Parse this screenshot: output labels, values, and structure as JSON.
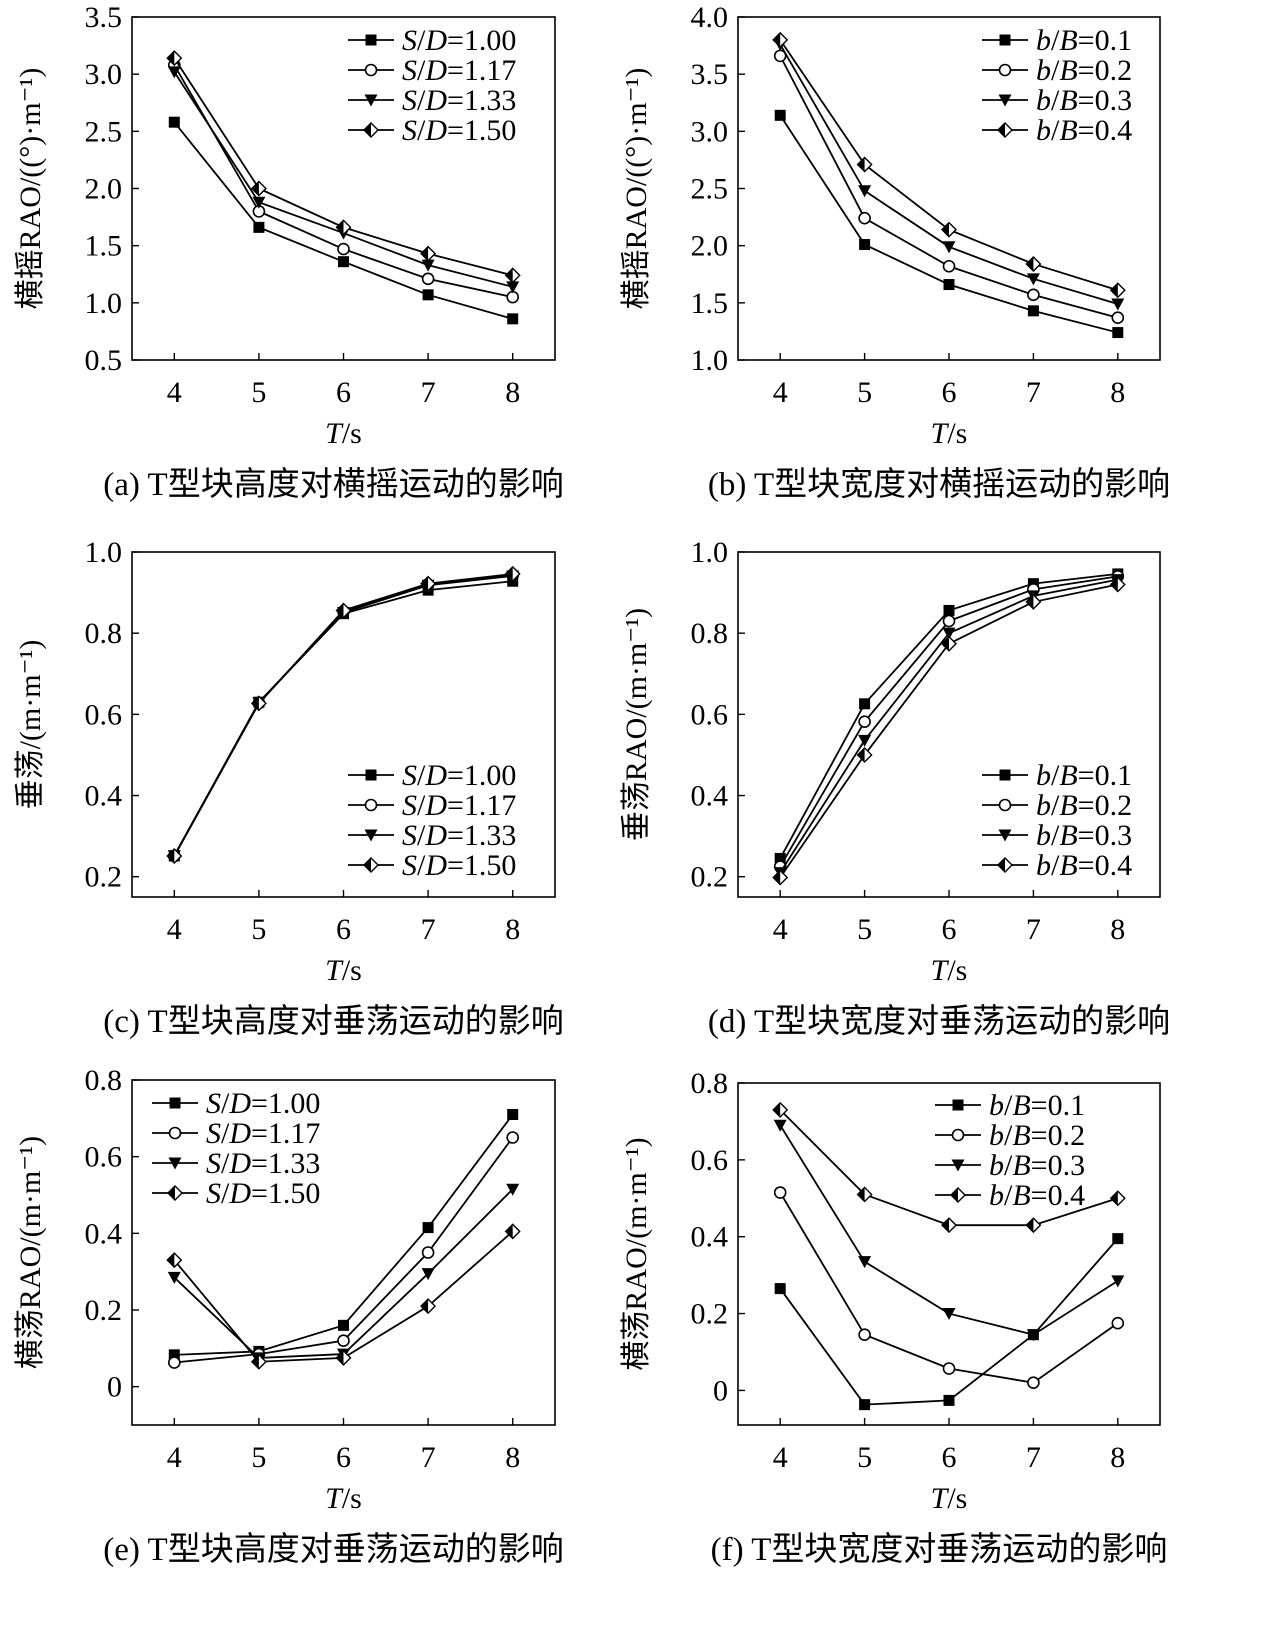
{
  "chart_data": [
    {
      "id": "a",
      "type": "line",
      "caption": "(a) T型块高度对横摇运动的影响",
      "title": "",
      "xlabel": "T/s",
      "ylabel": "横摇RAO/((°)·m⁻¹)",
      "x": [
        4,
        5,
        6,
        7,
        8
      ],
      "xlim": [
        3.5,
        8.5
      ],
      "ylim": [
        0.5,
        3.5
      ],
      "yticks": [
        "0.5",
        "1.0",
        "1.5",
        "2.0",
        "2.5",
        "3.0",
        "3.5"
      ],
      "legend_position": "top-right",
      "series": [
        {
          "name": "S/D=1.00",
          "var": "S",
          "sub": "D",
          "val": "=1.00",
          "marker": "square",
          "values": [
            2.58,
            1.66,
            1.36,
            1.07,
            0.86
          ]
        },
        {
          "name": "S/D=1.17",
          "var": "S",
          "sub": "D",
          "val": "=1.17",
          "marker": "circle",
          "values": [
            3.08,
            1.8,
            1.47,
            1.21,
            1.05
          ]
        },
        {
          "name": "S/D=1.33",
          "var": "S",
          "sub": "D",
          "val": "=1.33",
          "marker": "triangle",
          "values": [
            3.02,
            1.88,
            1.61,
            1.33,
            1.14
          ]
        },
        {
          "name": "S/D=1.50",
          "var": "S",
          "sub": "D",
          "val": "=1.50",
          "marker": "diamond",
          "values": [
            3.14,
            2.0,
            1.66,
            1.43,
            1.24
          ]
        }
      ]
    },
    {
      "id": "b",
      "type": "line",
      "caption": "(b) T型块宽度对横摇运动的影响",
      "title": "",
      "xlabel": "T/s",
      "ylabel": "横摇RAO/((°)·m⁻¹)",
      "x": [
        4,
        5,
        6,
        7,
        8
      ],
      "xlim": [
        3.5,
        8.5
      ],
      "ylim": [
        1.0,
        4.0
      ],
      "yticks": [
        "1.0",
        "1.5",
        "2.0",
        "2.5",
        "3.0",
        "3.5",
        "4.0"
      ],
      "legend_position": "top-right",
      "series": [
        {
          "name": "b/B=0.1",
          "var": "b",
          "sub": "B",
          "val": "=0.1",
          "marker": "square",
          "values": [
            3.14,
            2.01,
            1.66,
            1.43,
            1.24
          ]
        },
        {
          "name": "b/B=0.2",
          "var": "b",
          "sub": "B",
          "val": "=0.2",
          "marker": "circle",
          "values": [
            3.66,
            2.24,
            1.82,
            1.57,
            1.37
          ]
        },
        {
          "name": "b/B=0.3",
          "var": "b",
          "sub": "B",
          "val": "=0.3",
          "marker": "triangle",
          "values": [
            3.76,
            2.48,
            1.99,
            1.71,
            1.49
          ]
        },
        {
          "name": "b/B=0.4",
          "var": "b",
          "sub": "B",
          "val": "=0.4",
          "marker": "diamond",
          "values": [
            3.8,
            2.71,
            2.14,
            1.84,
            1.61
          ]
        }
      ]
    },
    {
      "id": "c",
      "type": "line",
      "caption": "(c) T型块高度对垂荡运动的影响",
      "title": "",
      "xlabel": "T/s",
      "ylabel": "垂荡/(m·m⁻¹)",
      "x": [
        4,
        5,
        6,
        7,
        8
      ],
      "xlim": [
        3.5,
        8.5
      ],
      "ylim": [
        0.15,
        1.0
      ],
      "yticks": [
        "0.2",
        "0.4",
        "0.6",
        "0.8",
        "1.0"
      ],
      "legend_position": "bottom-right",
      "series": [
        {
          "name": "S/D=1.00",
          "var": "S",
          "sub": "D",
          "val": "=1.00",
          "marker": "square",
          "values": [
            0.251,
            0.63,
            0.848,
            0.906,
            0.928
          ]
        },
        {
          "name": "S/D=1.17",
          "var": "S",
          "sub": "D",
          "val": "=1.17",
          "marker": "circle",
          "values": [
            0.251,
            0.628,
            0.853,
            0.92,
            0.943
          ]
        },
        {
          "name": "S/D=1.33",
          "var": "S",
          "sub": "D",
          "val": "=1.33",
          "marker": "triangle",
          "values": [
            0.252,
            0.629,
            0.851,
            0.918,
            0.941
          ]
        },
        {
          "name": "S/D=1.50",
          "var": "S",
          "sub": "D",
          "val": "=1.50",
          "marker": "diamond",
          "values": [
            0.251,
            0.627,
            0.856,
            0.922,
            0.946
          ]
        }
      ]
    },
    {
      "id": "d",
      "type": "line",
      "caption": "(d) T型块宽度对垂荡运动的影响",
      "title": "",
      "xlabel": "T/s",
      "ylabel": "垂荡RAO/(m·m⁻¹)",
      "x": [
        4,
        5,
        6,
        7,
        8
      ],
      "xlim": [
        3.5,
        8.5
      ],
      "ylim": [
        0.15,
        1.0
      ],
      "yticks": [
        "0.2",
        "0.4",
        "0.6",
        "0.8",
        "1.0"
      ],
      "legend_position": "bottom-right",
      "series": [
        {
          "name": "b/B=0.1",
          "var": "b",
          "sub": "B",
          "val": "=0.1",
          "marker": "square",
          "values": [
            0.245,
            0.626,
            0.856,
            0.922,
            0.946
          ]
        },
        {
          "name": "b/B=0.2",
          "var": "b",
          "sub": "B",
          "val": "=0.2",
          "marker": "circle",
          "values": [
            0.225,
            0.582,
            0.83,
            0.908,
            0.94
          ]
        },
        {
          "name": "b/B=0.3",
          "var": "b",
          "sub": "B",
          "val": "=0.3",
          "marker": "triangle",
          "values": [
            0.21,
            0.536,
            0.8,
            0.892,
            0.932
          ]
        },
        {
          "name": "b/B=0.4",
          "var": "b",
          "sub": "B",
          "val": "=0.4",
          "marker": "diamond",
          "values": [
            0.198,
            0.5,
            0.774,
            0.877,
            0.92
          ]
        }
      ]
    },
    {
      "id": "e",
      "type": "line",
      "caption": "(e) T型块高度对垂荡运动的影响",
      "title": "",
      "xlabel": "T/s",
      "ylabel": "横荡RAO/(m·m⁻¹)",
      "x": [
        4,
        5,
        6,
        7,
        8
      ],
      "xlim": [
        3.5,
        8.5
      ],
      "ylim": [
        -0.1,
        0.8
      ],
      "yticks": [
        "0",
        "0.2",
        "0.4",
        "0.6",
        "0.8"
      ],
      "legend_position": "top-left",
      "series": [
        {
          "name": "S/D=1.00",
          "var": "S",
          "sub": "D",
          "val": "=1.00",
          "marker": "square",
          "values": [
            0.083,
            0.092,
            0.16,
            0.415,
            0.71
          ]
        },
        {
          "name": "S/D=1.17",
          "var": "S",
          "sub": "D",
          "val": "=1.17",
          "marker": "circle",
          "values": [
            0.063,
            0.085,
            0.12,
            0.35,
            0.65
          ]
        },
        {
          "name": "S/D=1.33",
          "var": "S",
          "sub": "D",
          "val": "=1.33",
          "marker": "triangle",
          "values": [
            0.285,
            0.075,
            0.085,
            0.295,
            0.515
          ]
        },
        {
          "name": "S/D=1.50",
          "var": "S",
          "sub": "D",
          "val": "=1.50",
          "marker": "diamond",
          "values": [
            0.33,
            0.065,
            0.075,
            0.21,
            0.405
          ]
        }
      ]
    },
    {
      "id": "f",
      "type": "line",
      "caption": "(f) T型块宽度对垂荡运动的影响",
      "title": "",
      "xlabel": "T/s",
      "ylabel": "横荡RAO/(m·m⁻¹)",
      "x": [
        4,
        5,
        6,
        7,
        8
      ],
      "xlim": [
        3.5,
        8.5
      ],
      "ylim": [
        -0.09,
        0.8
      ],
      "yticks": [
        "0",
        "0.2",
        "0.4",
        "0.6",
        "0.8"
      ],
      "legend_position": "top-right",
      "series": [
        {
          "name": "b/B=0.1",
          "var": "b",
          "sub": "B",
          "val": "=0.1",
          "marker": "square",
          "values": [
            0.265,
            -0.037,
            -0.026,
            0.145,
            0.395
          ]
        },
        {
          "name": "b/B=0.2",
          "var": "b",
          "sub": "B",
          "val": "=0.2",
          "marker": "circle",
          "values": [
            0.515,
            0.145,
            0.057,
            0.02,
            0.175
          ]
        },
        {
          "name": "b/B=0.3",
          "var": "b",
          "sub": "B",
          "val": "=0.3",
          "marker": "triangle",
          "values": [
            0.69,
            0.335,
            0.2,
            0.145,
            0.285
          ]
        },
        {
          "name": "b/B=0.4",
          "var": "b",
          "sub": "B",
          "val": "=0.4",
          "marker": "diamond",
          "values": [
            0.73,
            0.51,
            0.43,
            0.43,
            0.5
          ]
        }
      ]
    }
  ]
}
